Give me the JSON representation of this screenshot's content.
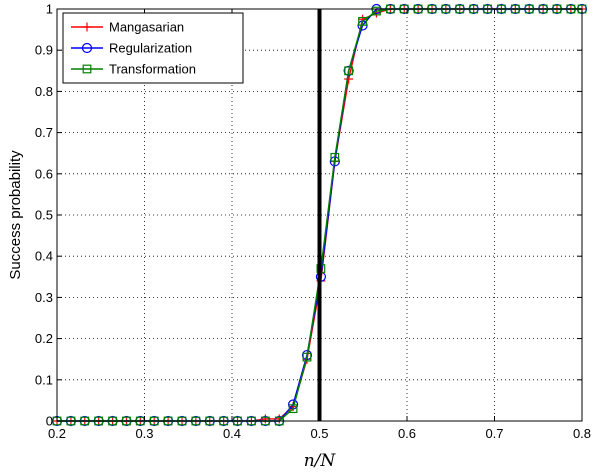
{
  "chart_data": {
    "type": "line",
    "title": "",
    "xlabel": "n/N",
    "ylabel": "Success probability",
    "xlim": [
      0.2,
      0.8
    ],
    "ylim": [
      0,
      1
    ],
    "xticks": [
      "0.2",
      "0.3",
      "0.4",
      "0.5",
      "0.6",
      "0.7",
      "0.8"
    ],
    "yticks": [
      "0",
      "0.1",
      "0.2",
      "0.3",
      "0.4",
      "0.5",
      "0.6",
      "0.7",
      "0.8",
      "0.9",
      "1"
    ],
    "grid": true,
    "legend_position": "top-left",
    "vertical_line_x": 0.5,
    "x": [
      0.2,
      0.2159,
      0.2317,
      0.2476,
      0.2635,
      0.2794,
      0.2952,
      0.3111,
      0.327,
      0.3429,
      0.3587,
      0.3746,
      0.3905,
      0.4063,
      0.4222,
      0.4381,
      0.454,
      0.4698,
      0.4857,
      0.5016,
      0.5175,
      0.5333,
      0.5492,
      0.5651,
      0.581,
      0.5968,
      0.6127,
      0.6286,
      0.6444,
      0.6603,
      0.6762,
      0.6921,
      0.7079,
      0.7238,
      0.7397,
      0.7556,
      0.7714,
      0.7873,
      0.8032
    ],
    "series": [
      {
        "name": "Mangasarian",
        "color": "#ff0000",
        "marker": "plus",
        "values": [
          0,
          0,
          0,
          0,
          0,
          0,
          0,
          0,
          0,
          0,
          0,
          0,
          0,
          0,
          0,
          0.005,
          0.005,
          0.035,
          0.15,
          0.34,
          0.63,
          0.83,
          0.975,
          0.99,
          1,
          1,
          1,
          1,
          1,
          1,
          1,
          1,
          1,
          1,
          1,
          1,
          1,
          1,
          1
        ]
      },
      {
        "name": "Regularization",
        "color": "#0000ff",
        "marker": "circle",
        "values": [
          0,
          0,
          0,
          0,
          0,
          0,
          0,
          0,
          0,
          0,
          0,
          0,
          0,
          0,
          0,
          0,
          0,
          0.04,
          0.16,
          0.35,
          0.63,
          0.85,
          0.96,
          1,
          1,
          1,
          1,
          1,
          1,
          1,
          1,
          1,
          1,
          1,
          1,
          1,
          1,
          1,
          1
        ]
      },
      {
        "name": "Transformation",
        "color": "#008000",
        "marker": "square",
        "values": [
          0,
          0,
          0,
          0,
          0,
          0,
          0,
          0,
          0,
          0,
          0,
          0,
          0,
          0,
          0,
          0,
          0,
          0.03,
          0.155,
          0.37,
          0.64,
          0.85,
          0.97,
          0.995,
          1,
          1,
          1,
          1,
          1,
          1,
          1,
          1,
          1,
          1,
          1,
          1,
          1,
          1,
          1
        ]
      }
    ]
  }
}
